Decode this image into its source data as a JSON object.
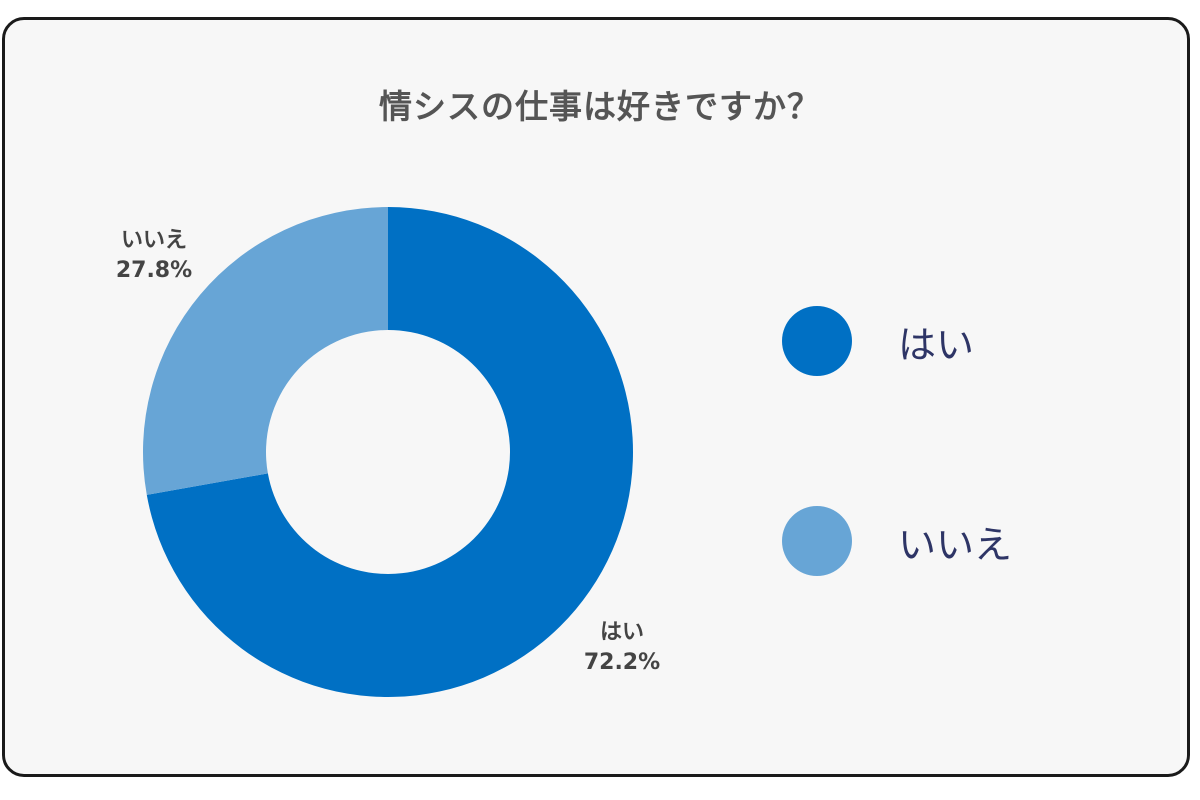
{
  "chart_data": {
    "type": "pie",
    "style": "donut",
    "title": "情シスの仕事は好きですか？",
    "categories": [
      "はい",
      "いいえ"
    ],
    "values": [
      72.2,
      27.8
    ],
    "value_labels": [
      "72.2%",
      "27.8%"
    ],
    "colors": [
      "#0070c4",
      "#67a5d6"
    ],
    "legend": "right"
  }
}
